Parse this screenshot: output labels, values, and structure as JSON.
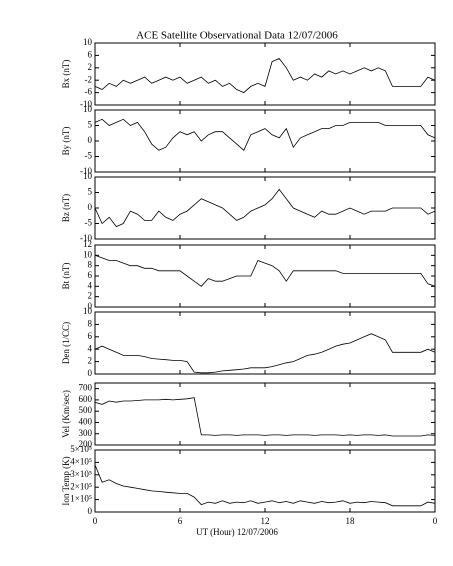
{
  "chart_data": [
    {
      "type": "line",
      "title": "ACE Satellite Observational Data   12/07/2006",
      "ylabel": "Bx (nT)",
      "color": "#000000",
      "x": [
        0,
        0.5,
        1,
        1.5,
        2,
        2.5,
        3,
        3.5,
        4,
        4.5,
        5,
        5.5,
        6,
        6.5,
        7,
        7.5,
        8,
        8.5,
        9,
        9.5,
        10,
        10.5,
        11,
        11.5,
        12,
        12.5,
        13,
        13.5,
        14,
        14.5,
        15,
        15.5,
        16,
        16.5,
        17,
        17.5,
        18,
        18.5,
        19,
        19.5,
        20,
        20.5,
        21,
        21.5,
        22,
        22.5,
        23,
        23.5,
        24
      ],
      "values": [
        -4,
        -5,
        -3,
        -4,
        -2,
        -3,
        -2,
        -1,
        -3,
        -2,
        -1,
        -2,
        -1,
        -3,
        -2,
        -1,
        -3,
        -2,
        -4,
        -3,
        -5,
        -6,
        -4,
        -3,
        -4,
        4,
        5,
        2,
        -2,
        -1,
        -2,
        0,
        -1,
        1,
        0,
        1,
        0,
        1,
        2,
        1,
        2,
        1,
        -4,
        -4,
        -4,
        -4,
        -4,
        -1,
        -2
      ],
      "xlim": [
        0,
        24
      ],
      "xticks": [
        0,
        6,
        12,
        18,
        {
          "value": 24,
          "label": "0"
        }
      ],
      "ylim": [
        -10,
        10
      ],
      "yticks": [
        -10,
        -6,
        -2,
        2,
        6,
        10
      ]
    },
    {
      "type": "line",
      "ylabel": "By (nT)",
      "color": "#000000",
      "x": [
        0,
        0.5,
        1,
        1.5,
        2,
        2.5,
        3,
        3.5,
        4,
        4.5,
        5,
        5.5,
        6,
        6.5,
        7,
        7.5,
        8,
        8.5,
        9,
        9.5,
        10,
        10.5,
        11,
        11.5,
        12,
        12.5,
        13,
        13.5,
        14,
        14.5,
        15,
        15.5,
        16,
        16.5,
        17,
        17.5,
        18,
        18.5,
        19,
        19.5,
        20,
        20.5,
        21,
        21.5,
        22,
        22.5,
        23,
        23.5,
        24
      ],
      "values": [
        6,
        7,
        5,
        6,
        7,
        5,
        6,
        3,
        -1,
        -3,
        -2,
        1,
        3,
        2,
        3,
        0,
        2,
        3,
        3,
        1,
        -1,
        -3,
        2,
        3,
        4,
        2,
        1,
        4,
        -2,
        1,
        2,
        3,
        4,
        4,
        5,
        5,
        6,
        6,
        6,
        6,
        6,
        5,
        5,
        5,
        5,
        5,
        5,
        2,
        1
      ],
      "xlim": [
        0,
        24
      ],
      "xticks": [
        0,
        6,
        12,
        18,
        {
          "value": 24,
          "label": "0"
        }
      ],
      "ylim": [
        -10,
        10
      ],
      "yticks": [
        -10,
        -5,
        0,
        5,
        10
      ]
    },
    {
      "type": "line",
      "ylabel": "Bz (nT)",
      "color": "#000000",
      "x": [
        0,
        0.5,
        1,
        1.5,
        2,
        2.5,
        3,
        3.5,
        4,
        4.5,
        5,
        5.5,
        6,
        6.5,
        7,
        7.5,
        8,
        8.5,
        9,
        9.5,
        10,
        10.5,
        11,
        11.5,
        12,
        12.5,
        13,
        13.5,
        14,
        14.5,
        15,
        15.5,
        16,
        16.5,
        17,
        17.5,
        18,
        18.5,
        19,
        19.5,
        20,
        20.5,
        21,
        21.5,
        22,
        22.5,
        23,
        23.5,
        24
      ],
      "values": [
        0,
        -5,
        -3,
        -6,
        -5,
        -1,
        -2,
        -4,
        -4,
        -1,
        -3,
        -4,
        -2,
        -1,
        1,
        3,
        2,
        1,
        0,
        -2,
        -4,
        -3,
        -1,
        0,
        1,
        3,
        6,
        3,
        0,
        -1,
        -2,
        -3,
        -1,
        -2,
        -2,
        -1,
        0,
        -1,
        -2,
        -1,
        -1,
        -1,
        0,
        0,
        0,
        0,
        0,
        -2,
        -1
      ],
      "xlim": [
        0,
        24
      ],
      "xticks": [
        0,
        6,
        12,
        18,
        {
          "value": 24,
          "label": "0"
        }
      ],
      "ylim": [
        -10,
        10
      ],
      "yticks": [
        -10,
        -5,
        0,
        5,
        10
      ]
    },
    {
      "type": "line",
      "ylabel": "Bt (nT)",
      "color": "#000000",
      "x": [
        0,
        0.5,
        1,
        1.5,
        2,
        2.5,
        3,
        3.5,
        4,
        4.5,
        5,
        5.5,
        6,
        6.5,
        7,
        7.5,
        8,
        8.5,
        9,
        9.5,
        10,
        10.5,
        11,
        11.5,
        12,
        12.5,
        13,
        13.5,
        14,
        14.5,
        15,
        15.5,
        16,
        16.5,
        17,
        17.5,
        18,
        18.5,
        19,
        19.5,
        20,
        20.5,
        21,
        21.5,
        22,
        22.5,
        23,
        23.5,
        24
      ],
      "values": [
        10,
        9.5,
        9,
        9,
        8.5,
        8,
        8,
        7.5,
        7.5,
        7,
        7,
        7,
        7,
        6,
        5,
        4,
        5.5,
        5,
        5,
        5.5,
        6,
        6,
        6,
        9,
        8.5,
        8,
        7,
        5,
        7,
        7,
        7,
        7,
        7,
        7,
        7,
        6.5,
        6.5,
        6.5,
        6.5,
        6.5,
        6.5,
        6.5,
        6.5,
        6.5,
        6.5,
        6.5,
        6.5,
        4.5,
        4
      ],
      "xlim": [
        0,
        24
      ],
      "xticks": [
        0,
        6,
        12,
        18,
        {
          "value": 24,
          "label": "0"
        }
      ],
      "ylim": [
        0,
        12
      ],
      "yticks": [
        0,
        2,
        4,
        6,
        8,
        10,
        12
      ]
    },
    {
      "type": "line",
      "ylabel": "Den (1/CC)",
      "color": "#000000",
      "x": [
        0,
        0.5,
        1,
        1.5,
        2,
        2.5,
        3,
        3.5,
        4,
        4.5,
        5,
        5.5,
        6,
        6.5,
        7,
        7.5,
        8,
        8.5,
        9,
        9.5,
        10,
        10.5,
        11,
        11.5,
        12,
        12.5,
        13,
        13.5,
        14,
        14.5,
        15,
        15.5,
        16,
        16.5,
        17,
        17.5,
        18,
        18.5,
        19,
        19.5,
        20,
        20.5,
        21,
        21.5,
        22,
        22.5,
        23,
        23.5,
        24
      ],
      "values": [
        4,
        4.5,
        4,
        3.5,
        3,
        3,
        3,
        2.8,
        2.5,
        2.4,
        2.3,
        2.2,
        2.2,
        2,
        0.3,
        0.2,
        0.2,
        0.3,
        0.5,
        0.6,
        0.7,
        0.8,
        1,
        1,
        1,
        1.2,
        1.5,
        1.8,
        2,
        2.5,
        3,
        3.2,
        3.5,
        4,
        4.5,
        4.8,
        5,
        5.5,
        6,
        6.5,
        6,
        5.5,
        3.5,
        3.5,
        3.5,
        3.5,
        3.5,
        4,
        3.5
      ],
      "xlim": [
        0,
        24
      ],
      "xticks": [
        0,
        6,
        12,
        18,
        {
          "value": 24,
          "label": "0"
        }
      ],
      "ylim": [
        0,
        10
      ],
      "yticks": [
        0,
        2,
        4,
        6,
        8,
        10
      ]
    },
    {
      "type": "line",
      "ylabel": "Vel (Km/sec)",
      "color": "#000000",
      "x": [
        0,
        0.5,
        1,
        1.5,
        2,
        2.5,
        3,
        3.5,
        4,
        4.5,
        5,
        5.5,
        6,
        6.5,
        7,
        7.5,
        8,
        8.5,
        9,
        9.5,
        10,
        10.5,
        11,
        11.5,
        12,
        12.5,
        13,
        13.5,
        14,
        14.5,
        15,
        15.5,
        16,
        16.5,
        17,
        17.5,
        18,
        18.5,
        19,
        19.5,
        20,
        20.5,
        21,
        21.5,
        22,
        22.5,
        23,
        23.5,
        24
      ],
      "values": [
        580,
        560,
        590,
        580,
        590,
        590,
        595,
        600,
        600,
        600,
        605,
        600,
        605,
        610,
        620,
        290,
        290,
        285,
        290,
        290,
        285,
        290,
        290,
        290,
        285,
        290,
        290,
        285,
        290,
        290,
        290,
        285,
        290,
        290,
        290,
        285,
        290,
        285,
        290,
        290,
        285,
        290,
        280,
        280,
        280,
        280,
        280,
        290,
        285
      ],
      "xlim": [
        0,
        24
      ],
      "xticks": [
        0,
        6,
        12,
        18,
        {
          "value": 24,
          "label": "0"
        }
      ],
      "ylim": [
        200,
        750
      ],
      "yticks": [
        200,
        300,
        400,
        500,
        600,
        700
      ]
    },
    {
      "type": "line",
      "ylabel": "Ion Temp (K)",
      "xlabel": "UT (Hour)   12/07/2006",
      "color": "#000000",
      "x": [
        0,
        0.5,
        1,
        1.5,
        2,
        2.5,
        3,
        3.5,
        4,
        4.5,
        5,
        5.5,
        6,
        6.5,
        7,
        7.5,
        8,
        8.5,
        9,
        9.5,
        10,
        10.5,
        11,
        11.5,
        12,
        12.5,
        13,
        13.5,
        14,
        14.5,
        15,
        15.5,
        16,
        16.5,
        17,
        17.5,
        18,
        18.5,
        19,
        19.5,
        20,
        20.5,
        21,
        21.5,
        22,
        22.5,
        23,
        23.5,
        24
      ],
      "values": [
        380000,
        240000,
        260000,
        230000,
        210000,
        200000,
        190000,
        180000,
        170000,
        165000,
        160000,
        155000,
        150000,
        150000,
        120000,
        60000,
        80000,
        70000,
        90000,
        70000,
        80000,
        75000,
        90000,
        70000,
        80000,
        90000,
        75000,
        85000,
        70000,
        90000,
        80000,
        70000,
        85000,
        75000,
        80000,
        90000,
        70000,
        80000,
        75000,
        85000,
        80000,
        75000,
        50000,
        50000,
        50000,
        50000,
        50000,
        80000,
        70000
      ],
      "xlim": [
        0,
        24
      ],
      "xticks": [
        0,
        6,
        12,
        18,
        {
          "value": 24,
          "label": "0"
        }
      ],
      "ylim": [
        0,
        500000
      ],
      "yticks": [
        0,
        {
          "value": 100000,
          "label": "1×10⁵"
        },
        {
          "value": 200000,
          "label": "2×10⁵"
        },
        {
          "value": 300000,
          "label": "3×10⁵"
        },
        {
          "value": 400000,
          "label": "4×10⁵"
        },
        {
          "value": 500000,
          "label": "5×10⁵"
        }
      ]
    }
  ]
}
